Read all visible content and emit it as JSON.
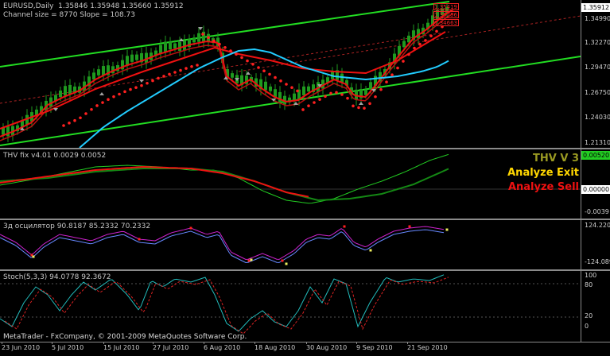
{
  "main_pane": {
    "header": "EURUSD,Daily  1.35846 1.35948 1.35660 1.35912",
    "subheader": "Channel size = 8770 Slope = 108.73",
    "price_ticks": [
      "1.35912",
      "1.34990",
      "1.32270",
      "1.29470",
      "1.26750",
      "1.24030",
      "1.21310"
    ],
    "current_price": "1.35912",
    "levels": [
      "1.35419",
      "1.35256",
      "1.34663"
    ]
  },
  "thv_pane": {
    "label": "THV fix v4.01 0.0029 0.0052",
    "ticks": [
      "0.00520",
      "0.00000",
      "-0.0039"
    ],
    "brand": {
      "title": "THV V 3",
      "exit": "Analyze Exit",
      "sell": "Analyze Sell"
    }
  },
  "osc_pane": {
    "label": "3д осцилятор 90.8187 85.2332 70.2332",
    "ticks": [
      "124.220",
      "-124.089"
    ]
  },
  "stoch_pane": {
    "label": "Stoch(5,3,3) 94.0778 92.3672",
    "ticks": [
      "100",
      "80",
      "20",
      "0"
    ]
  },
  "footer": {
    "copyright": "MetaTrader - FxCompany, © 2001-2009 MetaQuotes Software Corp."
  },
  "dates": [
    "23 Jun 2010",
    "5 Jul 2010",
    "15 Jul 2010",
    "27 Jul 2010",
    "6 Aug 2010",
    "18 Aug 2010",
    "30 Aug 2010",
    "9 Sep 2010",
    "21 Sep 2010"
  ],
  "colors": {
    "channel": "#22dd22",
    "candles": "#1f9a1f",
    "ema_red": "#ee1111",
    "cyan": "#22ccff",
    "sar": "#ff2020",
    "pivots": "#a0a0a0",
    "thv_bright": "#22cc22",
    "thv_dark": "#148814",
    "osc_magenta": "#cc22cc",
    "osc_blue": "#6688ff",
    "stoch_cyan": "#22bbbb",
    "stoch_red": "#dd2222",
    "brand_olive": "#9a9a22",
    "brand_yellow": "#ffd700",
    "brand_red": "#ee1111"
  }
}
